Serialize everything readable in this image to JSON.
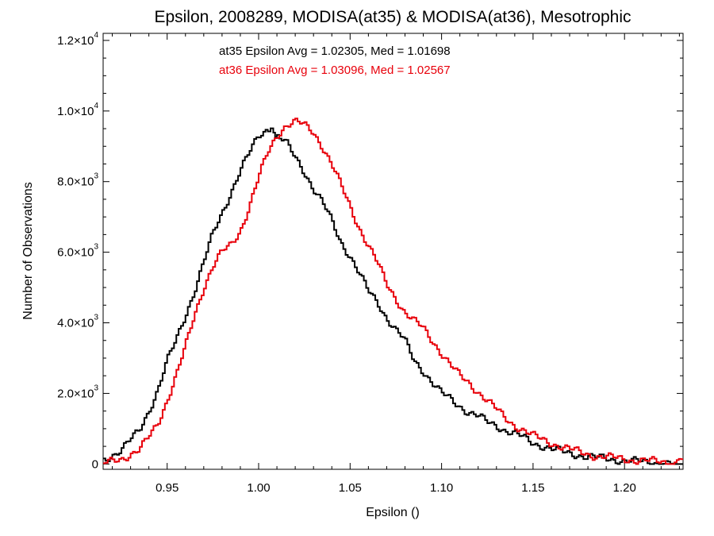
{
  "chart_data": {
    "type": "line",
    "title": "Epsilon, 2008289, MODISA(at35) & MODISA(at36), Mesotrophic",
    "xlabel": "Epsilon ()",
    "ylabel": "Number of Observations",
    "xlim": [
      0.915,
      1.232
    ],
    "ylim": [
      -150,
      12200
    ],
    "x_ticks": [
      {
        "value": 0.95,
        "label": "0.95"
      },
      {
        "value": 1.0,
        "label": "1.00"
      },
      {
        "value": 1.05,
        "label": "1.05"
      },
      {
        "value": 1.1,
        "label": "1.10"
      },
      {
        "value": 1.15,
        "label": "1.15"
      },
      {
        "value": 1.2,
        "label": "1.20"
      }
    ],
    "y_ticks": [
      {
        "value": 0,
        "mantissa": "0",
        "exponent": ""
      },
      {
        "value": 2000,
        "mantissa": "2.0×10",
        "exponent": "3"
      },
      {
        "value": 4000,
        "mantissa": "4.0×10",
        "exponent": "3"
      },
      {
        "value": 6000,
        "mantissa": "6.0×10",
        "exponent": "3"
      },
      {
        "value": 8000,
        "mantissa": "8.0×10",
        "exponent": "3"
      },
      {
        "value": 10000,
        "mantissa": "1.0×10",
        "exponent": "4"
      },
      {
        "value": 12000,
        "mantissa": "1.2×10",
        "exponent": "4"
      }
    ],
    "annotations": [
      {
        "text": "at35 Epsilon Avg = 1.02305, Med = 1.01698",
        "color": "#000000"
      },
      {
        "text": "at36 Epsilon Avg = 1.03096, Med = 1.02567",
        "color": "#e8000b"
      }
    ],
    "grid": false,
    "legend": "none",
    "series": [
      {
        "color": "#000000",
        "x": [
          0.915,
          0.925,
          0.935,
          0.94,
          0.945,
          0.95,
          0.955,
          0.96,
          0.965,
          0.97,
          0.975,
          0.98,
          0.985,
          0.99,
          0.995,
          1.0,
          1.005,
          1.008,
          1.01,
          1.015,
          1.02,
          1.025,
          1.03,
          1.035,
          1.04,
          1.045,
          1.05,
          1.055,
          1.06,
          1.065,
          1.07,
          1.075,
          1.08,
          1.085,
          1.09,
          1.095,
          1.1,
          1.105,
          1.11,
          1.115,
          1.12,
          1.125,
          1.13,
          1.135,
          1.14,
          1.145,
          1.15,
          1.155,
          1.16,
          1.165,
          1.17,
          1.175,
          1.18,
          1.185,
          1.19,
          1.195,
          1.2,
          1.205,
          1.21,
          1.215,
          1.22,
          1.225,
          1.232
        ],
        "y": [
          100,
          400,
          950,
          1500,
          2100,
          2900,
          3500,
          4200,
          4900,
          5700,
          6500,
          7100,
          7700,
          8300,
          8800,
          9300,
          9500,
          9500,
          9300,
          9100,
          8700,
          8300,
          7800,
          7400,
          6900,
          6300,
          5900,
          5400,
          4900,
          4600,
          4150,
          3800,
          3500,
          2950,
          2650,
          2300,
          2000,
          1850,
          1650,
          1450,
          1350,
          1200,
          1100,
          950,
          850,
          750,
          600,
          520,
          430,
          360,
          300,
          260,
          210,
          180,
          150,
          120,
          100,
          80,
          60,
          45,
          30,
          15,
          0
        ]
      },
      {
        "color": "#e8000b",
        "x": [
          0.915,
          0.925,
          0.935,
          0.94,
          0.945,
          0.95,
          0.955,
          0.96,
          0.965,
          0.97,
          0.975,
          0.98,
          0.985,
          0.99,
          0.995,
          1.0,
          1.005,
          1.01,
          1.015,
          1.02,
          1.025,
          1.03,
          1.035,
          1.04,
          1.045,
          1.05,
          1.055,
          1.06,
          1.065,
          1.07,
          1.075,
          1.08,
          1.085,
          1.09,
          1.095,
          1.1,
          1.105,
          1.11,
          1.115,
          1.12,
          1.125,
          1.13,
          1.135,
          1.14,
          1.145,
          1.15,
          1.155,
          1.16,
          1.165,
          1.17,
          1.175,
          1.18,
          1.185,
          1.19,
          1.195,
          1.2,
          1.205,
          1.21,
          1.215,
          1.22,
          1.225,
          1.232
        ],
        "y": [
          0,
          150,
          400,
          750,
          1150,
          1800,
          2500,
          3300,
          4200,
          5000,
          5600,
          6000,
          6200,
          6600,
          7300,
          8100,
          8800,
          9300,
          9600,
          9700,
          9600,
          9400,
          9000,
          8500,
          7900,
          7300,
          6700,
          6200,
          5700,
          5100,
          4700,
          4300,
          4050,
          3850,
          3500,
          3150,
          2800,
          2500,
          2300,
          2050,
          1800,
          1550,
          1300,
          1100,
          950,
          800,
          700,
          600,
          500,
          420,
          350,
          280,
          220,
          200,
          170,
          140,
          110,
          100,
          80,
          60,
          40,
          20
        ]
      }
    ]
  }
}
